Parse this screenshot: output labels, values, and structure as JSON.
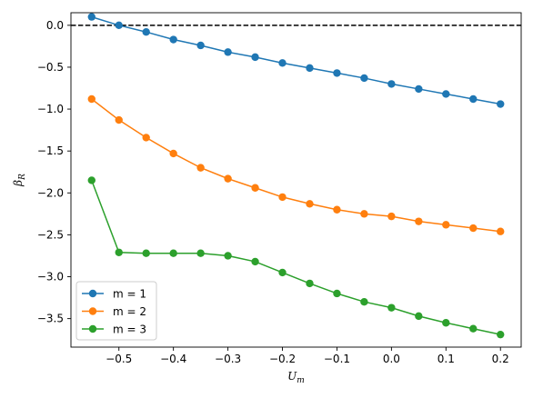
{
  "chart_data": {
    "type": "line",
    "title": "",
    "xlabel": "U_m",
    "ylabel": "β_R",
    "xlim": [
      -0.588,
      0.238
    ],
    "ylim": [
      -3.84,
      0.15
    ],
    "xticks": [
      -0.5,
      -0.4,
      -0.3,
      -0.2,
      -0.1,
      0.0,
      0.1,
      0.2
    ],
    "xtick_labels": [
      "−0.5",
      "−0.4",
      "−0.3",
      "−0.2",
      "−0.1",
      "0.0",
      "0.1",
      "0.2"
    ],
    "yticks": [
      0.0,
      -0.5,
      -1.0,
      -1.5,
      -2.0,
      -2.5,
      -3.0,
      -3.5
    ],
    "ytick_labels": [
      "0.0",
      "−0.5",
      "−1.0",
      "−1.5",
      "−2.0",
      "−2.5",
      "−3.0",
      "−3.5"
    ],
    "reference_line": {
      "y": 0,
      "style": "dashed",
      "color": "#000000"
    },
    "grid": false,
    "legend": {
      "position": "lower-left"
    },
    "x": [
      -0.55,
      -0.5,
      -0.45,
      -0.4,
      -0.35,
      -0.3,
      -0.25,
      -0.2,
      -0.15,
      -0.1,
      -0.05,
      0.0,
      0.05,
      0.1,
      0.15,
      0.2
    ],
    "series": [
      {
        "name": "m = 1",
        "color": "#1f77b4",
        "values": [
          0.1,
          0.0,
          -0.08,
          -0.17,
          -0.24,
          -0.32,
          -0.38,
          -0.45,
          -0.51,
          -0.57,
          -0.63,
          -0.7,
          -0.76,
          -0.82,
          -0.88,
          -0.94
        ]
      },
      {
        "name": "m = 2",
        "color": "#ff7f0e",
        "values": [
          -0.88,
          -1.13,
          -1.34,
          -1.53,
          -1.7,
          -1.83,
          -1.94,
          -2.05,
          -2.13,
          -2.2,
          -2.25,
          -2.28,
          -2.34,
          -2.38,
          -2.42,
          -2.46
        ]
      },
      {
        "name": "m = 3",
        "color": "#2ca02c",
        "values": [
          -1.85,
          -2.71,
          -2.72,
          -2.72,
          -2.72,
          -2.75,
          -2.82,
          -2.95,
          -3.08,
          -3.2,
          -3.3,
          -3.37,
          -3.47,
          -3.55,
          -3.62,
          -3.69
        ]
      }
    ]
  }
}
